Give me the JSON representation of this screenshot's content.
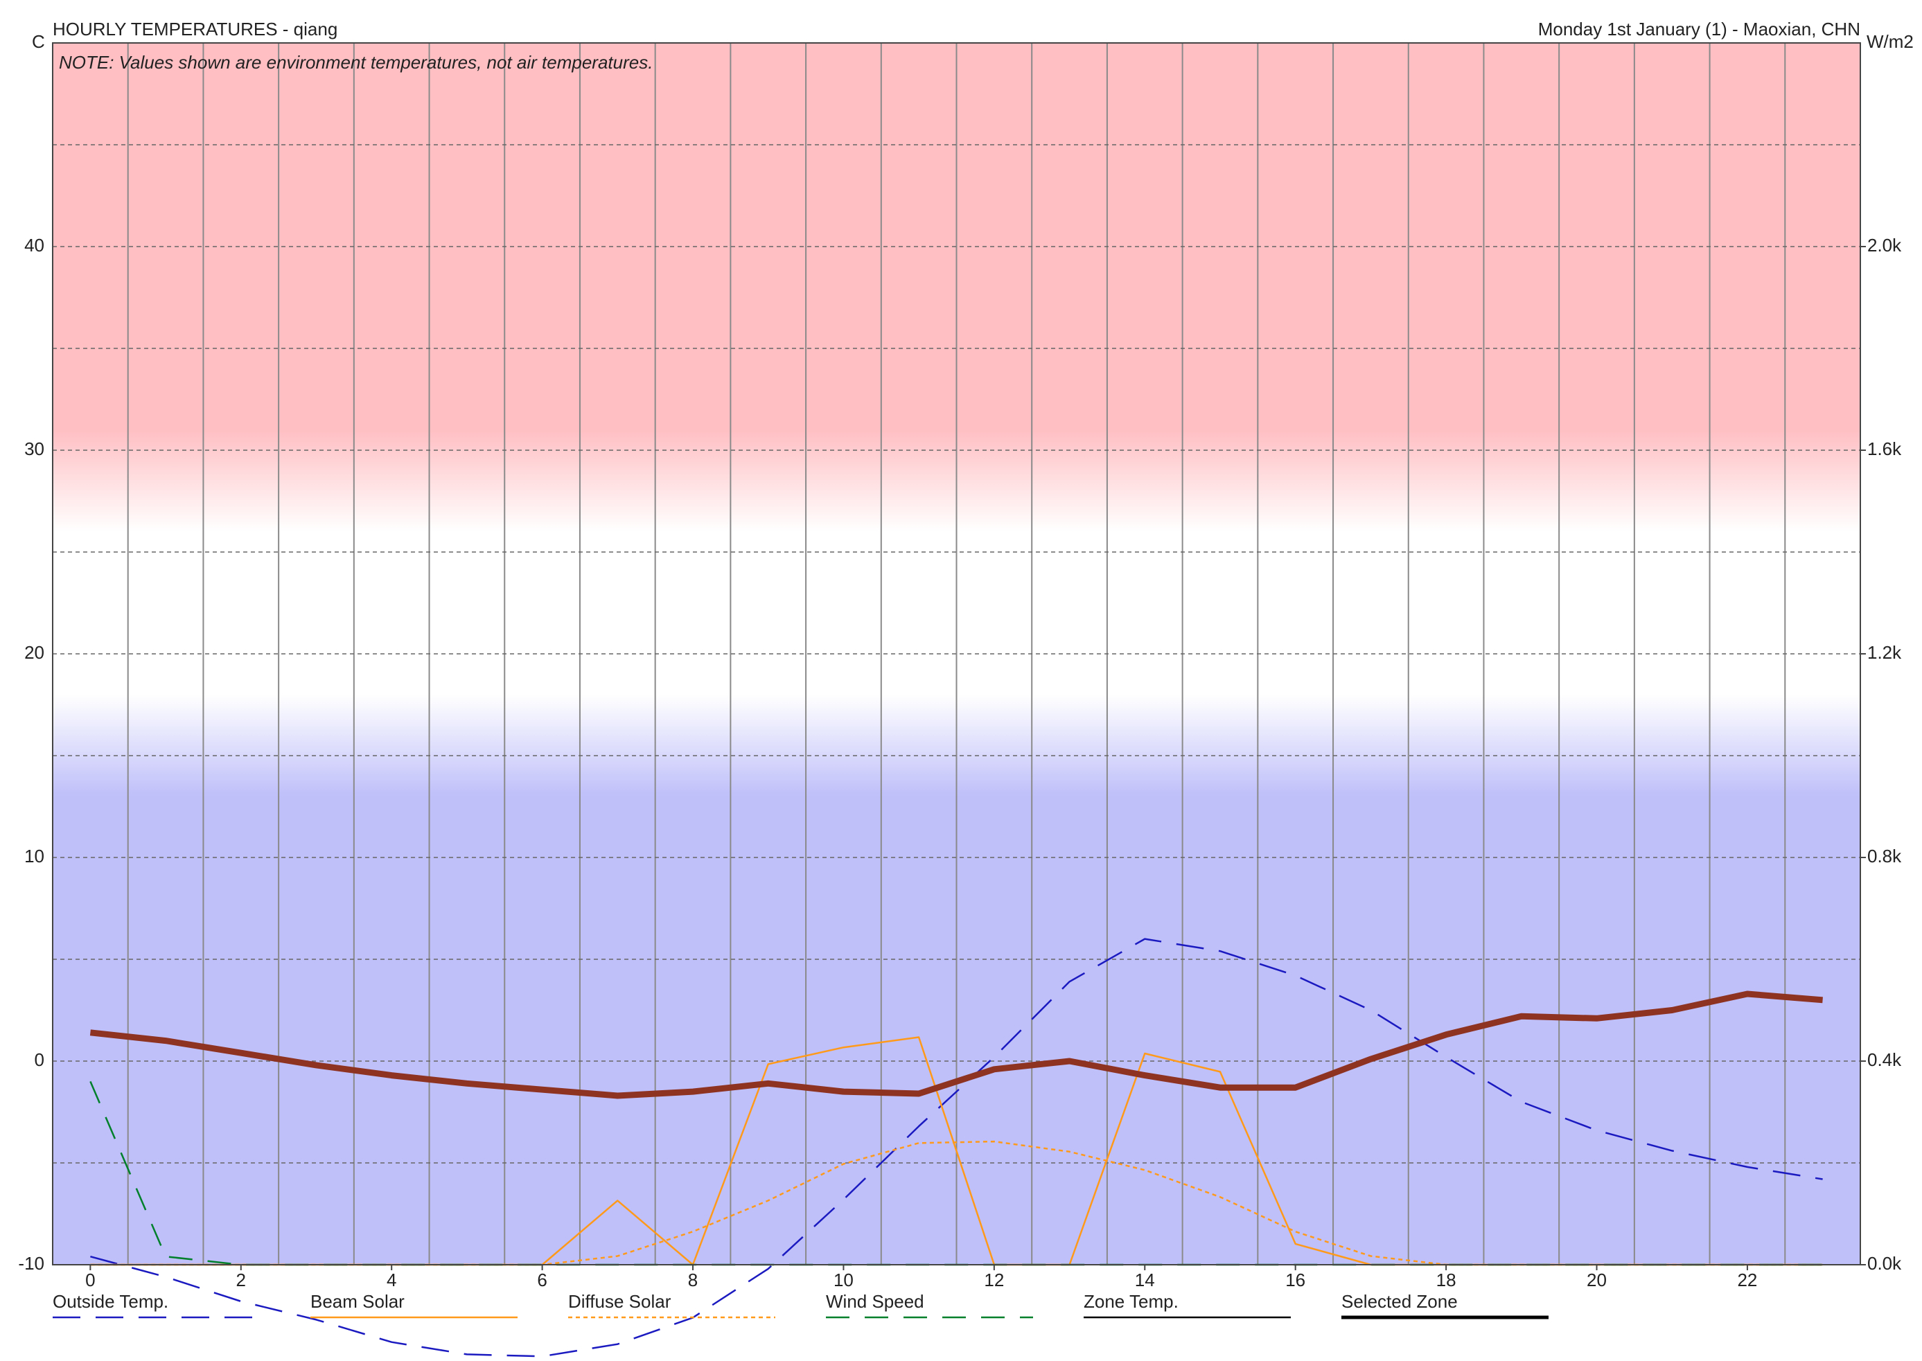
{
  "chart_data": {
    "type": "line",
    "title": "HOURLY TEMPERATURES - qiang",
    "subtitle": "Monday 1st January (1) - Maoxian, CHN",
    "annotation": "NOTE: Values shown are environment temperatures, not air temperatures.",
    "y_label": "C",
    "y2_label": "W/m2",
    "x": [
      0,
      1,
      2,
      3,
      4,
      5,
      6,
      7,
      8,
      9,
      10,
      11,
      12,
      13,
      14,
      15,
      16,
      17,
      18,
      19,
      20,
      21,
      22,
      23
    ],
    "xlim": [
      -0.5,
      23.5
    ],
    "xticks": [
      0,
      2,
      4,
      6,
      8,
      10,
      12,
      14,
      16,
      18,
      20,
      22
    ],
    "xgrid": [
      0.5,
      1.5,
      2.5,
      3.5,
      4.5,
      5.5,
      6.5,
      7.5,
      8.5,
      9.5,
      10.5,
      11.5,
      12.5,
      13.5,
      14.5,
      15.5,
      16.5,
      17.5,
      18.5,
      19.5,
      20.5,
      21.5,
      22.5
    ],
    "ylim": [
      -10,
      50
    ],
    "yticks": [
      -10,
      0,
      10,
      20,
      30,
      40
    ],
    "ygrid": [
      -5,
      5,
      15,
      25,
      35,
      45
    ],
    "y2lim": [
      0,
      2400
    ],
    "y2ticks": [
      {
        "value": 0,
        "label": "0.0k"
      },
      {
        "value": 400,
        "label": "0.4k"
      },
      {
        "value": 800,
        "label": "0.8k"
      },
      {
        "value": 1200,
        "label": "1.2k"
      },
      {
        "value": 1600,
        "label": "1.6k"
      },
      {
        "value": 2000,
        "label": "2.0k"
      }
    ],
    "grid": true,
    "background_bands": {
      "hot": 31,
      "warm": 26,
      "cool": 18,
      "cold": 13,
      "hot_color": "#ffbfc3",
      "cold_color": "#bfbffa"
    },
    "series": [
      {
        "name": "Outside Temp.",
        "color": "#1a1ac0",
        "dash": "40 22",
        "width": 2.5,
        "values": [
          -9.6,
          -10.6,
          -11.8,
          -12.7,
          -13.8,
          -14.4,
          -14.5,
          -13.9,
          -12.6,
          -10.2,
          -6.8,
          -3.2,
          0.2,
          3.9,
          6.0,
          5.4,
          4.2,
          2.5,
          0.2,
          -2.0,
          -3.4,
          -4.4,
          -5.2,
          -5.8
        ]
      },
      {
        "name": "Beam Solar",
        "color": "#ff9a1a",
        "dash": "none",
        "width": 2.5,
        "axis": "y2",
        "values": [
          0,
          0,
          0,
          0,
          0,
          0,
          0,
          126,
          0,
          394,
          427,
          447,
          0,
          0,
          415,
          379,
          41,
          0,
          0,
          0,
          0,
          0,
          0,
          0
        ]
      },
      {
        "name": "Diffuse Solar",
        "color": "#ff9a1a",
        "dash": "6 5",
        "width": 2.5,
        "axis": "y2",
        "values": [
          0,
          0,
          0,
          0,
          0,
          0,
          0,
          17,
          65,
          126,
          198,
          239,
          242,
          222,
          186,
          133,
          65,
          17,
          0,
          0,
          0,
          0,
          0,
          0
        ]
      },
      {
        "name": "Wind Speed",
        "color": "#00802b",
        "dash": "34 22",
        "width": 2.5,
        "values": [
          -1.0,
          -9.6,
          -10,
          -10,
          -10,
          -10,
          -10,
          -10,
          -10,
          -10,
          -10,
          -10,
          -10,
          -10,
          -10,
          -10,
          -10,
          -10,
          -10,
          -10,
          -10,
          -10,
          -10,
          -10
        ]
      },
      {
        "name": "Zone Temp.",
        "color": "#000000",
        "dash": "none",
        "width": 2.5,
        "values": [
          null,
          null,
          null,
          null,
          null,
          null,
          null,
          null,
          null,
          null,
          null,
          null,
          null,
          null,
          null,
          null,
          null,
          null,
          null,
          null,
          null,
          null,
          null,
          null
        ]
      },
      {
        "name": "Selected Zone",
        "color": "#8e3322",
        "legend_color": "#000000",
        "dash": "none",
        "width": 9,
        "values": [
          1.4,
          1.0,
          0.4,
          -0.2,
          -0.7,
          -1.1,
          -1.4,
          -1.7,
          -1.5,
          -1.1,
          -1.5,
          -1.6,
          -0.4,
          0,
          -0.7,
          -1.3,
          -1.3,
          0.1,
          1.3,
          2.2,
          2.1,
          2.5,
          3.3,
          3.0
        ]
      }
    ]
  }
}
